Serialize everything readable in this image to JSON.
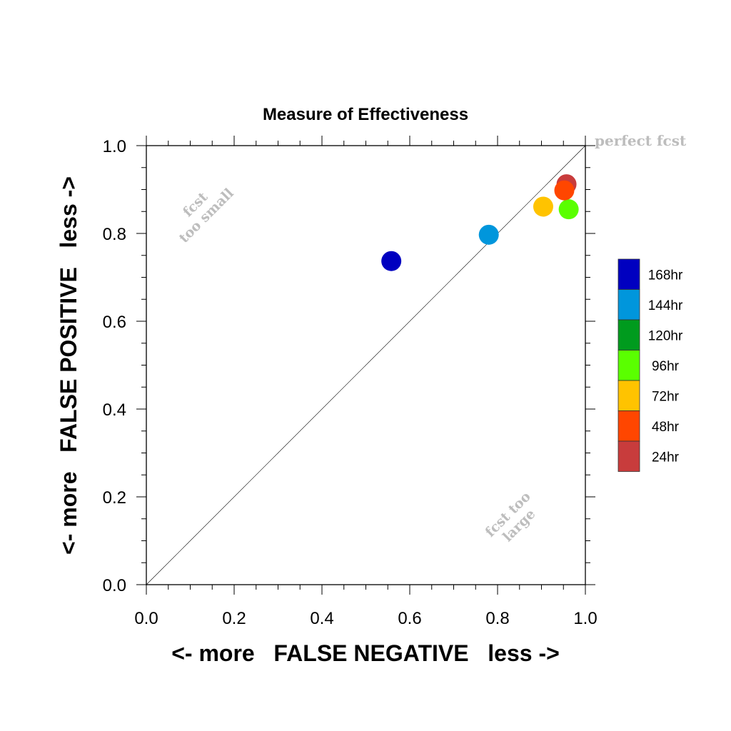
{
  "chart_data": {
    "type": "scatter",
    "title": "Measure of Effectiveness",
    "xlabel": "<- more   FALSE NEGATIVE   less ->",
    "ylabel": "<- more   FALSE POSITIVE   less ->",
    "xlim": [
      0.0,
      1.0
    ],
    "ylim": [
      0.0,
      1.0
    ],
    "x_ticks": [
      "0.0",
      "0.2",
      "0.4",
      "0.6",
      "0.8",
      "1.0"
    ],
    "y_ticks": [
      "0.0",
      "0.2",
      "0.4",
      "0.6",
      "0.8",
      "1.0"
    ],
    "grid": false,
    "diagonal_line": true,
    "annotations": {
      "perfect": "perfect fcst",
      "too_small_line1": "fcst",
      "too_small_line2": "too small",
      "too_large_line1": "fcst too",
      "too_large_line2": "large"
    },
    "legend_position": "right",
    "legend": [
      {
        "label": "168hr",
        "color": "#0000c0"
      },
      {
        "label": "144hr",
        "color": "#0096dc"
      },
      {
        "label": "120hr",
        "color": "#009b1e"
      },
      {
        "label": "96hr",
        "color": "#5aff00"
      },
      {
        "label": "72hr",
        "color": "#ffc300"
      },
      {
        "label": "48hr",
        "color": "#ff4600"
      },
      {
        "label": "24hr",
        "color": "#c83c3c"
      }
    ],
    "points": [
      {
        "series": "168hr",
        "x": 0.558,
        "y": 0.737,
        "color": "#0000c0"
      },
      {
        "series": "144hr",
        "x": 0.78,
        "y": 0.797,
        "color": "#0096dc"
      },
      {
        "series": "72hr",
        "x": 0.904,
        "y": 0.861,
        "color": "#ffc300"
      },
      {
        "series": "96hr",
        "x": 0.962,
        "y": 0.855,
        "color": "#5aff00"
      },
      {
        "series": "24hr",
        "x": 0.957,
        "y": 0.912,
        "color": "#c83c3c"
      },
      {
        "series": "48hr",
        "x": 0.952,
        "y": 0.898,
        "color": "#ff4600"
      }
    ]
  }
}
